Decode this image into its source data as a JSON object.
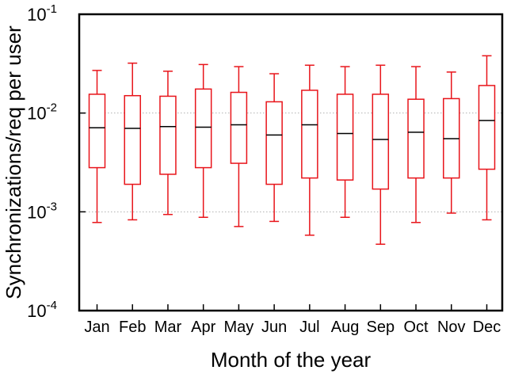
{
  "chart_data": {
    "type": "box",
    "title": "",
    "xlabel": "Month of the year",
    "ylabel": "Synchronizations/req per user",
    "yscale": "log",
    "ylim": [
      0.0001,
      0.1
    ],
    "yticks": [
      {
        "value": 0.0001,
        "base": "10",
        "exp": "-4"
      },
      {
        "value": 0.001,
        "base": "10",
        "exp": "-3"
      },
      {
        "value": 0.01,
        "base": "10",
        "exp": "-2"
      },
      {
        "value": 0.1,
        "base": "10",
        "exp": "-1"
      }
    ],
    "grid": "horizontal dotted at 10^-3 and 10^-2",
    "box_color": "#e8141a",
    "median_color": "#000000",
    "categories": [
      "Jan",
      "Feb",
      "Mar",
      "Apr",
      "May",
      "Jun",
      "Jul",
      "Aug",
      "Sep",
      "Oct",
      "Nov",
      "Dec"
    ],
    "boxes": [
      {
        "min": 0.00078,
        "q1": 0.0028,
        "median": 0.0071,
        "q3": 0.0155,
        "max": 0.027
      },
      {
        "min": 0.00083,
        "q1": 0.0019,
        "median": 0.007,
        "q3": 0.015,
        "max": 0.032
      },
      {
        "min": 0.00094,
        "q1": 0.0024,
        "median": 0.0073,
        "q3": 0.0148,
        "max": 0.0265
      },
      {
        "min": 0.00088,
        "q1": 0.0028,
        "median": 0.0072,
        "q3": 0.0175,
        "max": 0.031
      },
      {
        "min": 0.00071,
        "q1": 0.0031,
        "median": 0.0076,
        "q3": 0.0162,
        "max": 0.0295
      },
      {
        "min": 0.0008,
        "q1": 0.0019,
        "median": 0.006,
        "q3": 0.013,
        "max": 0.025
      },
      {
        "min": 0.00058,
        "q1": 0.0022,
        "median": 0.0076,
        "q3": 0.017,
        "max": 0.0305
      },
      {
        "min": 0.00088,
        "q1": 0.0021,
        "median": 0.0062,
        "q3": 0.0155,
        "max": 0.0295
      },
      {
        "min": 0.00047,
        "q1": 0.0017,
        "median": 0.0054,
        "q3": 0.0155,
        "max": 0.0305
      },
      {
        "min": 0.00078,
        "q1": 0.0022,
        "median": 0.0064,
        "q3": 0.0138,
        "max": 0.0295
      },
      {
        "min": 0.00097,
        "q1": 0.0022,
        "median": 0.0055,
        "q3": 0.014,
        "max": 0.026
      },
      {
        "min": 0.00083,
        "q1": 0.0027,
        "median": 0.0084,
        "q3": 0.019,
        "max": 0.038
      }
    ]
  }
}
